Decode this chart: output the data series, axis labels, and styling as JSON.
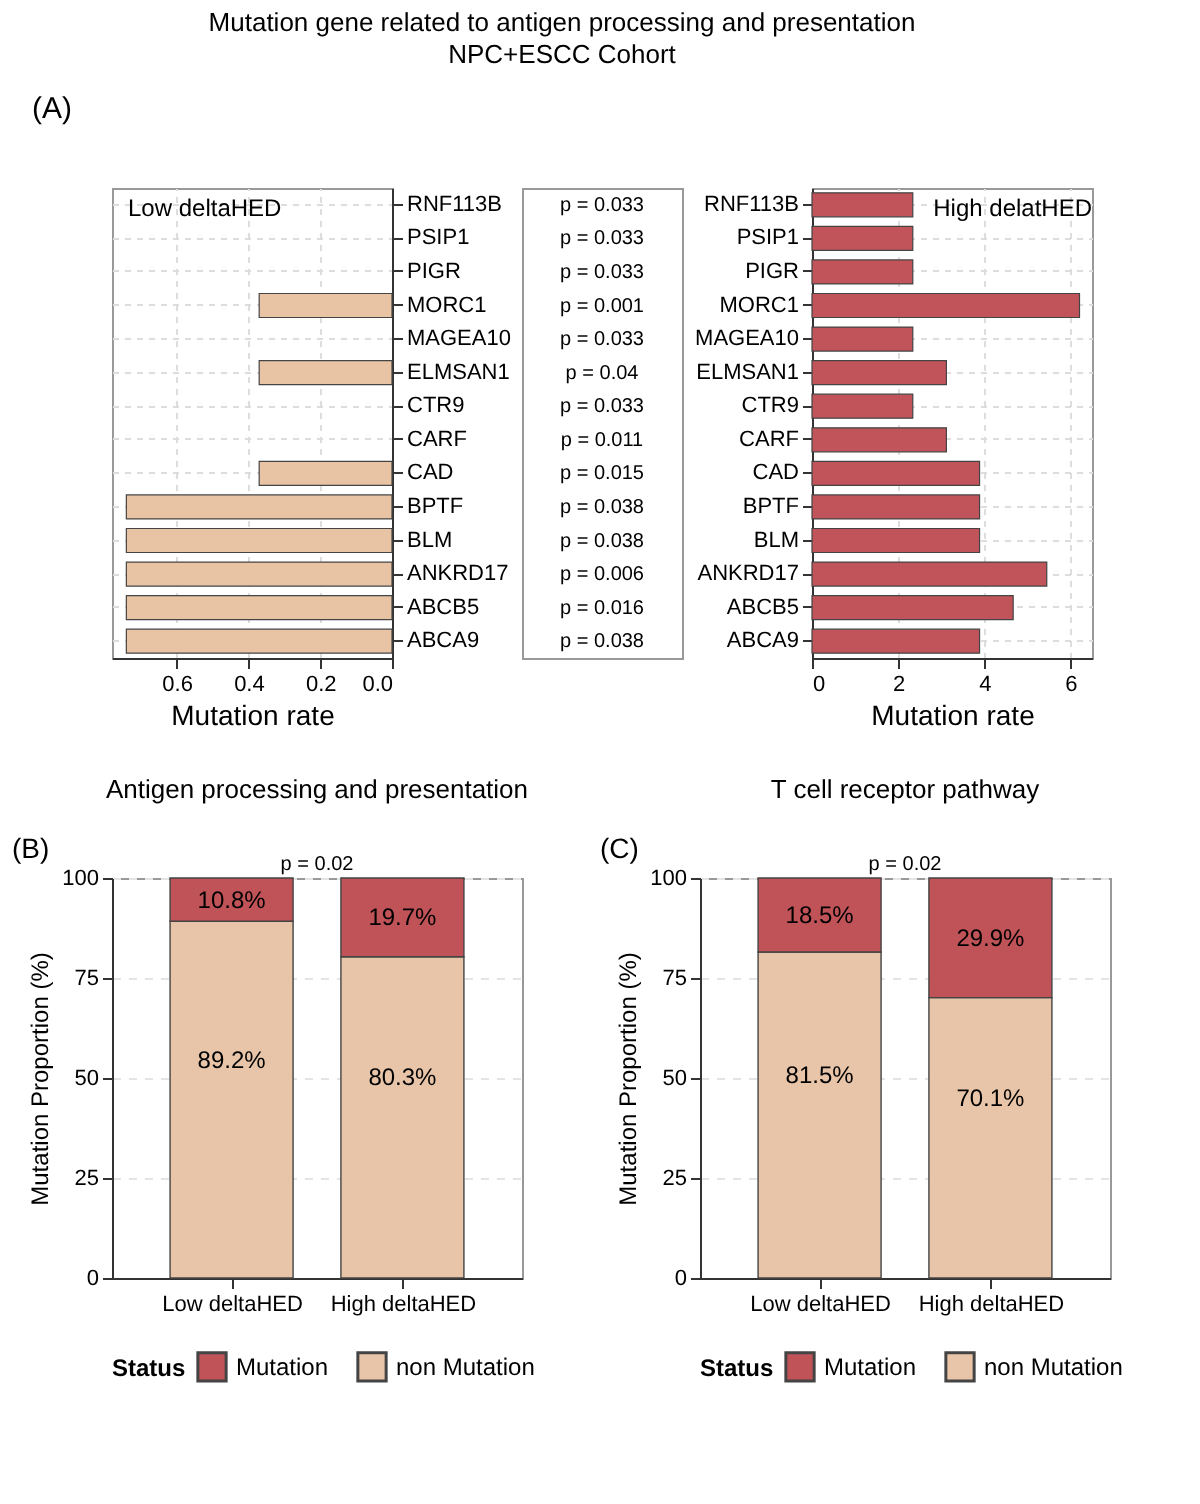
{
  "chart_data": [
    {
      "type": "bar",
      "orientation": "horizontal",
      "categories": [
        "RNF113B",
        "PSIP1",
        "PIGR",
        "MORC1",
        "MAGEA10",
        "ELMSAN1",
        "CTR9",
        "CARF",
        "CAD",
        "BPTF",
        "BLM",
        "ANKRD17",
        "ABCB5",
        "ABCA9"
      ],
      "values": [
        0,
        0,
        0,
        0.37,
        0,
        0.37,
        0,
        0,
        0.37,
        0.74,
        0.74,
        0.74,
        0.74,
        0.74
      ],
      "color": "#e8c4a4",
      "xlim": [
        0.78,
        0
      ],
      "xticks": [
        0.6,
        0.4,
        0.2,
        {
          "value": 0,
          "label": "0.0"
        }
      ],
      "xlabel": "Mutation rate",
      "grid": true,
      "annotations": [
        "(A)",
        "Low deltaHED"
      ]
    },
    {
      "type": "other",
      "title": "Mutation gene related to antigen processing and presentation",
      "subtitle": "NPC+ESCC Cohort",
      "annotations": [
        "p = 0.033",
        "p = 0.033",
        "p = 0.033",
        "p = 0.001",
        "p = 0.033",
        "p = 0.04",
        "p = 0.033",
        "p = 0.011",
        "p = 0.015",
        "p = 0.038",
        "p = 0.038",
        "p = 0.006",
        "p = 0.016",
        "p = 0.038"
      ]
    },
    {
      "type": "bar",
      "orientation": "horizontal",
      "categories": [
        "RNF113B",
        "PSIP1",
        "PIGR",
        "MORC1",
        "MAGEA10",
        "ELMSAN1",
        "CTR9",
        "CARF",
        "CAD",
        "BPTF",
        "BLM",
        "ANKRD17",
        "ABCB5",
        "ABCA9"
      ],
      "values": [
        2.34,
        2.34,
        2.34,
        6.21,
        2.34,
        3.12,
        2.34,
        3.12,
        3.89,
        3.89,
        3.89,
        5.45,
        4.67,
        3.89
      ],
      "color": "#c0545a",
      "xlim": [
        0,
        6.5
      ],
      "xticks": [
        0,
        2,
        4,
        6
      ],
      "xlabel": "Mutation rate",
      "grid": true,
      "annotations": [
        "High delatHED"
      ]
    },
    {
      "type": "bar",
      "stacked": true,
      "title": "Antigen processing and presentation",
      "categories": [
        "Low deltaHED",
        "High deltaHED"
      ],
      "series": [
        {
          "name": "non Mutation",
          "color": "#e8c5a8",
          "values": [
            89.2,
            80.3
          ],
          "value_labels": [
            "89.2%",
            "80.3%"
          ]
        },
        {
          "name": "Mutation",
          "color": "#bf5358",
          "values": [
            10.8,
            19.7
          ],
          "value_labels": [
            "10.8%",
            "19.7%"
          ]
        }
      ],
      "ylabel": "Mutation Proportion (%)",
      "ylim": [
        0,
        100
      ],
      "yticks": [
        0,
        25,
        50,
        75,
        100
      ],
      "grid": "y",
      "legend": "bottom",
      "legend_title": "Status",
      "annotations": [
        "(B)",
        "p = 0.02"
      ]
    },
    {
      "type": "bar",
      "stacked": true,
      "title": "T cell receptor pathway",
      "categories": [
        "Low deltaHED",
        "High deltaHED"
      ],
      "series": [
        {
          "name": "non Mutation",
          "color": "#e8c5a8",
          "values": [
            81.5,
            70.1
          ],
          "value_labels": [
            "81.5%",
            "70.1%"
          ]
        },
        {
          "name": "Mutation",
          "color": "#bf5358",
          "values": [
            18.5,
            29.9
          ],
          "value_labels": [
            "18.5%",
            "29.9%"
          ]
        }
      ],
      "ylabel": "Mutation Proportion (%)",
      "ylim": [
        0,
        100
      ],
      "yticks": [
        0,
        25,
        50,
        75,
        100
      ],
      "grid": "y",
      "legend": "bottom",
      "legend_title": "Status",
      "annotations": [
        "(C)",
        "p = 0.02"
      ]
    }
  ]
}
